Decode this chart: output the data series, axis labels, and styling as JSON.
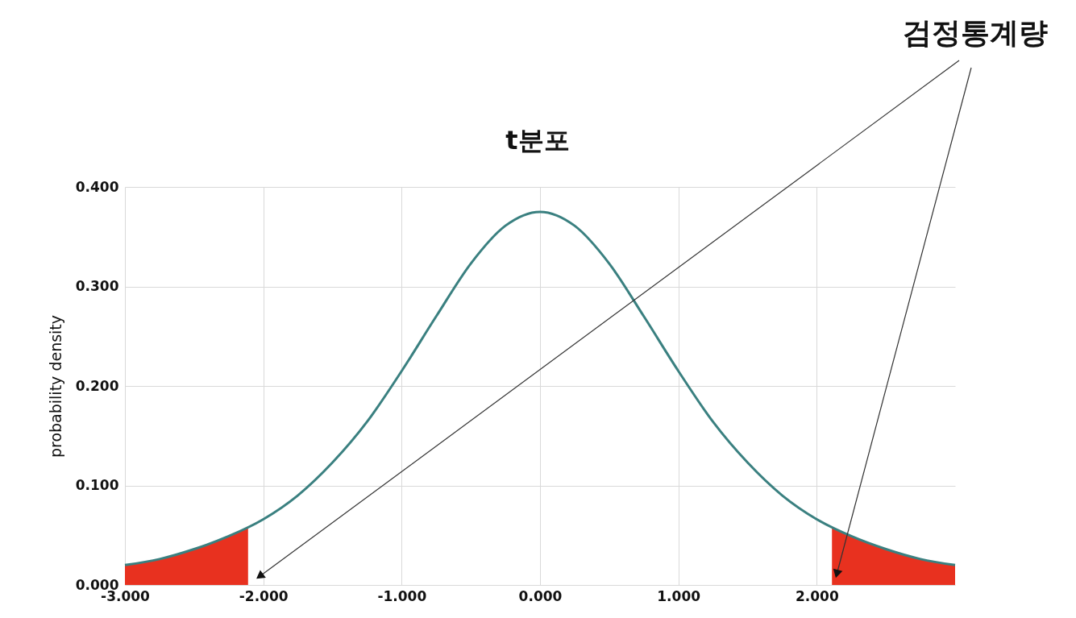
{
  "chart_data": {
    "type": "line",
    "title": "t분포",
    "ylabel": "probability density",
    "annotations": [
      "검정통계량"
    ],
    "xlim": [
      -3,
      3
    ],
    "ylim": [
      0,
      0.4
    ],
    "xticks": [
      {
        "value": -3,
        "label": "-3.000"
      },
      {
        "value": -2,
        "label": "-2.000"
      },
      {
        "value": -1,
        "label": "-1.000"
      },
      {
        "value": 0,
        "label": "0.000"
      },
      {
        "value": 1,
        "label": "1.000"
      },
      {
        "value": 2,
        "label": "2.000"
      }
    ],
    "yticks": [
      {
        "value": 0,
        "label": "0.000"
      },
      {
        "value": 0.1,
        "label": "0.100"
      },
      {
        "value": 0.2,
        "label": "0.200"
      },
      {
        "value": 0.3,
        "label": "0.300"
      },
      {
        "value": 0.4,
        "label": "0.400"
      }
    ],
    "grid": true,
    "series": [
      {
        "type": "area",
        "color": "#e8311f",
        "x": [
          -3,
          -2.75,
          -2.5,
          -2.25,
          -2.11
        ],
        "values": [
          0.02,
          0.026,
          0.036,
          0.049,
          0.058
        ]
      },
      {
        "type": "area",
        "color": "#e8311f",
        "x": [
          2.11,
          2.25,
          2.5,
          2.75,
          3
        ],
        "values": [
          0.058,
          0.049,
          0.036,
          0.026,
          0.02
        ]
      },
      {
        "color": "#3a8080",
        "x": [
          -3,
          -2.75,
          -2.5,
          -2.25,
          -2,
          -1.75,
          -1.5,
          -1.25,
          -1,
          -0.75,
          -0.5,
          -0.25,
          0,
          0.25,
          0.5,
          0.75,
          1,
          1.25,
          1.5,
          1.75,
          2,
          2.25,
          2.5,
          2.75,
          3
        ],
        "values": [
          0.02,
          0.026,
          0.036,
          0.049,
          0.066,
          0.09,
          0.123,
          0.164,
          0.215,
          0.27,
          0.323,
          0.361,
          0.375,
          0.361,
          0.323,
          0.27,
          0.215,
          0.164,
          0.123,
          0.09,
          0.066,
          0.049,
          0.036,
          0.026,
          0.02
        ]
      }
    ]
  }
}
